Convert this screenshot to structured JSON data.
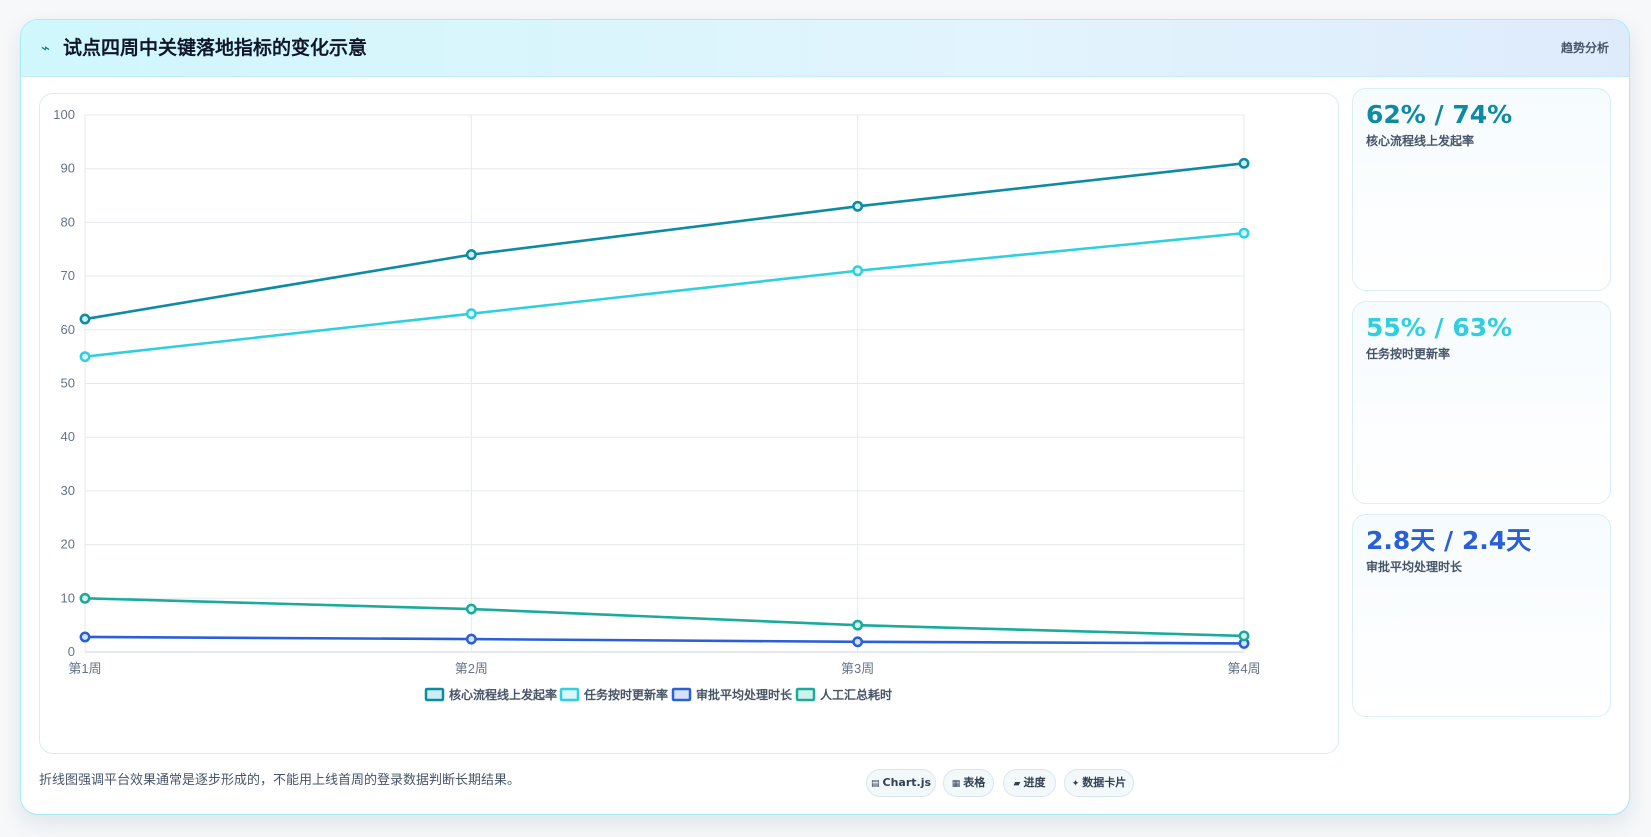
{
  "header": {
    "icon": "lightning-icon",
    "title": "试点四周中关键落地指标的变化示意",
    "tag": "趋势分析"
  },
  "chart_data": {
    "type": "line",
    "title": "",
    "xlabel": "",
    "ylabel": "",
    "categories": [
      "第1周",
      "第2周",
      "第3周",
      "第4周"
    ],
    "ylim": [
      0,
      100
    ],
    "yticks": [
      0,
      10,
      20,
      30,
      40,
      50,
      60,
      70,
      80,
      90,
      100
    ],
    "grid": true,
    "legend_position": "bottom",
    "series": [
      {
        "name": "核心流程线上发起率",
        "values": [
          62,
          74,
          83,
          91
        ],
        "color": "#0e8aa3",
        "fill": "#cdeef4"
      },
      {
        "name": "任务按时更新率",
        "values": [
          55,
          63,
          71,
          78
        ],
        "color": "#30cfe0",
        "fill": "#d9f8fb"
      },
      {
        "name": "审批平均处理时长",
        "values": [
          2.8,
          2.4,
          1.9,
          1.6
        ],
        "color": "#2a5fd6",
        "fill": "#d6e2fb"
      },
      {
        "name": "人工汇总耗时",
        "values": [
          10,
          8,
          5,
          3
        ],
        "color": "#1bab9a",
        "fill": "#d0f1ec"
      }
    ]
  },
  "stats": [
    {
      "value": "62% / 74%",
      "label": "核心流程线上发起率",
      "color": "#0e8aa3"
    },
    {
      "value": "55% / 63%",
      "label": "任务按时更新率",
      "color": "#30cfe0"
    },
    {
      "value": "2.8天 / 2.4天",
      "label": "审批平均处理时长",
      "color": "#2a5fd6"
    }
  ],
  "footnote": "折线图强调平台效果通常是逐步形成的，不能用上线首周的登录数据判断长期结果。",
  "chips": [
    {
      "icon": "chart-icon",
      "glyph": "▤",
      "label": "Chart.js"
    },
    {
      "icon": "table-icon",
      "glyph": "▦",
      "label": "表格"
    },
    {
      "icon": "progress-icon",
      "glyph": "▰",
      "label": "进度"
    },
    {
      "icon": "sparkle-icon",
      "glyph": "✦",
      "label": "数据卡片"
    }
  ]
}
